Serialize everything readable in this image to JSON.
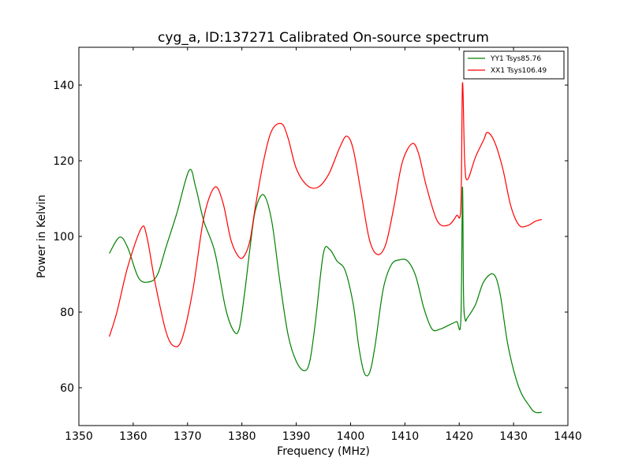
{
  "chart_data": {
    "type": "line",
    "title": "cyg_a, ID:137271 Calibrated On-source spectrum",
    "xlabel": "Frequency (MHz)",
    "ylabel": "Power in Kelvin",
    "xlim": [
      1350,
      1440
    ],
    "ylim": [
      50,
      150
    ],
    "xticks": [
      1350,
      1360,
      1370,
      1380,
      1390,
      1400,
      1410,
      1420,
      1430,
      1440
    ],
    "yticks": [
      60,
      80,
      100,
      120,
      140
    ],
    "grid": false,
    "legend_position": "top-right",
    "series": [
      {
        "name": "YY1 Tsys85.76",
        "color": "#008000",
        "x": [
          1355.6,
          1357.5,
          1359,
          1361,
          1363,
          1364.5,
          1366,
          1368,
          1370.3,
          1371.5,
          1373,
          1375,
          1377,
          1378.5,
          1379.5,
          1380.5,
          1381.5,
          1382.5,
          1384,
          1385.5,
          1387,
          1388.5,
          1390,
          1391.5,
          1392.5,
          1393.5,
          1395,
          1396.2,
          1397.5,
          1399,
          1400.5,
          1401.5,
          1402.5,
          1403.5,
          1404.5,
          1406,
          1407.5,
          1409,
          1410.5,
          1412,
          1413.5,
          1415,
          1416.5,
          1418,
          1419.5,
          1420.3,
          1420.6,
          1420.8,
          1421.1,
          1421.5,
          1423,
          1424.5,
          1426.3,
          1427.5,
          1429,
          1431,
          1433,
          1434,
          1435.2
        ],
        "y": [
          95.5,
          99.8,
          97,
          89,
          88,
          90,
          97,
          106,
          117.5,
          113,
          104,
          96,
          81,
          75,
          75.5,
          85,
          97,
          107,
          111,
          104,
          88,
          74,
          67,
          64.5,
          67,
          77,
          95.5,
          96.5,
          93.5,
          91,
          82,
          71,
          64,
          64,
          71,
          86,
          92.5,
          93.8,
          93.5,
          89.5,
          81,
          75.5,
          75.5,
          76.5,
          77.5,
          78,
          113,
          84,
          78,
          78.5,
          82,
          88,
          90,
          85,
          71,
          60,
          55,
          53.5,
          53.5
        ]
      },
      {
        "name": "XX1 Tsys106.49",
        "color": "#ff0000",
        "x": [
          1355.6,
          1357,
          1359,
          1361.5,
          1362.5,
          1364,
          1366,
          1367.5,
          1369,
          1371,
          1373,
          1375,
          1376.5,
          1378,
          1379.5,
          1380.5,
          1381.5,
          1382.5,
          1384,
          1385.5,
          1387.3,
          1388.5,
          1390,
          1392,
          1394,
          1396,
          1398,
          1399.3,
          1400.5,
          1402,
          1403.5,
          1405,
          1406.5,
          1408,
          1409.5,
          1411.3,
          1412.5,
          1414,
          1416,
          1418,
          1419.5,
          1420.3,
          1420.6,
          1421,
          1421.5,
          1423,
          1424.5,
          1425.2,
          1426.5,
          1428,
          1429.5,
          1431,
          1432.5,
          1434,
          1435.2
        ],
        "y": [
          73.5,
          80,
          92,
          102.2,
          100,
          88,
          75,
          71,
          73,
          86,
          105,
          113,
          109,
          99,
          94.5,
          95,
          99,
          108,
          120,
          128,
          129.8,
          126,
          118,
          113.5,
          113,
          116.5,
          123.5,
          126.5,
          123,
          111,
          99,
          95.2,
          98,
          108,
          119.5,
          124.5,
          122,
          113,
          104,
          103,
          105.5,
          108,
          140.5,
          120,
          115,
          121,
          125.5,
          127.5,
          125,
          118,
          108,
          103,
          102.8,
          104,
          104.5
        ]
      }
    ]
  }
}
